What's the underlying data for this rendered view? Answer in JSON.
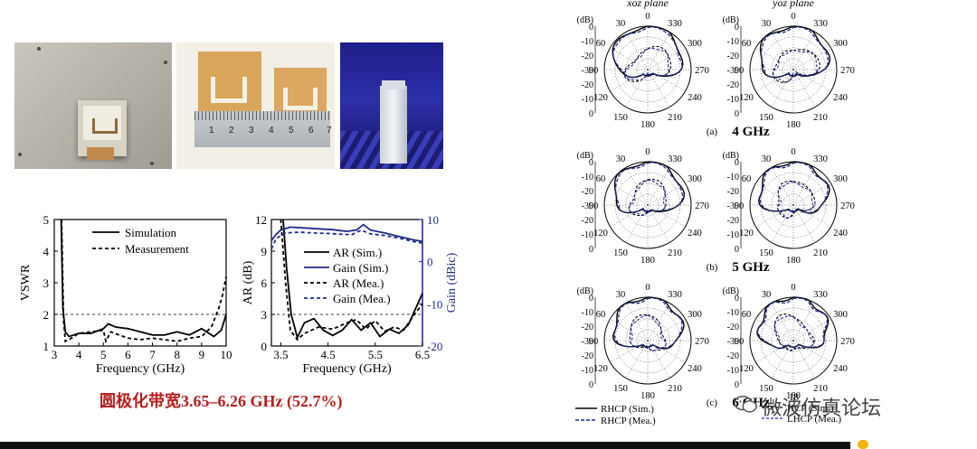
{
  "photos": {
    "ruler_numbers": [
      "1",
      "2",
      "3",
      "4",
      "5",
      "6",
      "7"
    ]
  },
  "chart_data": [
    {
      "type": "line",
      "id": "vswr",
      "xlabel": "Frequency (GHz)",
      "ylabel": "VSWR",
      "xlim": [
        3,
        10
      ],
      "ylim": [
        1,
        5
      ],
      "xticks": [
        "3",
        "4",
        "5",
        "6",
        "7",
        "8",
        "9",
        "10"
      ],
      "yticks": [
        "1",
        "2",
        "3",
        "4",
        "5"
      ],
      "reference_line": 2,
      "series": [
        {
          "name": "Simulation",
          "style": "solid",
          "x": [
            3.28,
            3.35,
            3.45,
            3.6,
            3.8,
            4.0,
            4.5,
            5.0,
            5.2,
            5.5,
            6.0,
            6.5,
            7.0,
            7.5,
            8.0,
            8.5,
            9.0,
            9.5,
            9.8,
            10.0
          ],
          "y": [
            5.0,
            2.2,
            1.45,
            1.3,
            1.35,
            1.4,
            1.4,
            1.55,
            1.7,
            1.6,
            1.55,
            1.45,
            1.35,
            1.35,
            1.45,
            1.35,
            1.55,
            1.3,
            1.5,
            2.0
          ]
        },
        {
          "name": "Measurement",
          "style": "dashed",
          "x": [
            3.3,
            3.38,
            3.45,
            3.6,
            3.8,
            4.0,
            4.5,
            5.0,
            5.1,
            5.3,
            6.0,
            6.5,
            7.0,
            7.5,
            8.0,
            8.5,
            9.0,
            9.4,
            9.7,
            9.85,
            10.0
          ],
          "y": [
            5.0,
            1.8,
            1.15,
            1.2,
            1.3,
            1.4,
            1.45,
            1.5,
            1.15,
            1.45,
            1.25,
            1.2,
            1.25,
            1.2,
            1.15,
            1.25,
            1.3,
            1.6,
            2.2,
            2.6,
            3.2
          ]
        }
      ],
      "legend": [
        "Simulation",
        "Measurement"
      ]
    },
    {
      "type": "line",
      "id": "ar-gain",
      "xlabel": "Frequency (GHz)",
      "ylabel": "AR (dB)",
      "ylabel_right": "Gain (dBic)",
      "xlim": [
        3.3,
        6.5
      ],
      "ylim": [
        0,
        12
      ],
      "ylim_right": [
        -20,
        10
      ],
      "xticks": [
        "3.5",
        "4.5",
        "5.5",
        "6.5"
      ],
      "xtick_values": [
        3.5,
        4.5,
        5.5,
        6.5
      ],
      "yticks": [
        "0",
        "3",
        "6",
        "9",
        "12"
      ],
      "yticks_right": [
        "-20",
        "-10",
        "0",
        "10"
      ],
      "reference_line": 3,
      "series": [
        {
          "name": "AR (Sim.)",
          "style": "solid",
          "color": "#000000",
          "axis": "left",
          "x": [
            3.55,
            3.62,
            3.72,
            3.85,
            4.0,
            4.2,
            4.4,
            4.6,
            4.8,
            5.0,
            5.2,
            5.4,
            5.6,
            5.8,
            6.0,
            6.2,
            6.4,
            6.5
          ],
          "y": [
            12.0,
            7.5,
            3.0,
            0.8,
            2.2,
            2.6,
            1.5,
            1.0,
            1.5,
            2.5,
            1.5,
            2.2,
            0.9,
            1.6,
            1.2,
            2.0,
            4.0,
            5.0
          ]
        },
        {
          "name": "Gain (Sim.)",
          "style": "solid",
          "color": "#1f2a8c",
          "axis": "right",
          "x": [
            3.3,
            3.4,
            3.5,
            3.7,
            4.0,
            4.3,
            4.6,
            4.9,
            5.1,
            5.25,
            5.4,
            5.7,
            6.0,
            6.3,
            6.5
          ],
          "y": [
            5.0,
            6.5,
            7.5,
            8.2,
            8.0,
            7.8,
            7.6,
            7.2,
            7.5,
            8.8,
            7.5,
            6.8,
            6.0,
            5.2,
            4.8
          ]
        },
        {
          "name": "AR (Mea.)",
          "style": "dashed",
          "color": "#000000",
          "axis": "left",
          "x": [
            3.5,
            3.6,
            3.7,
            3.85,
            4.0,
            4.3,
            4.6,
            4.9,
            5.1,
            5.3,
            5.5,
            5.7,
            5.9,
            6.1,
            6.3,
            6.5
          ],
          "y": [
            12.0,
            6.0,
            1.5,
            0.6,
            1.2,
            1.8,
            1.6,
            2.2,
            2.5,
            1.6,
            2.4,
            1.4,
            1.8,
            1.5,
            2.8,
            4.0
          ]
        },
        {
          "name": "Gain (Mea.)",
          "style": "dashed",
          "color": "#1f2a8c",
          "axis": "right",
          "x": [
            3.3,
            3.4,
            3.6,
            3.9,
            4.2,
            4.5,
            4.8,
            5.0,
            5.2,
            5.4,
            5.7,
            6.0,
            6.3,
            6.5
          ],
          "y": [
            3.0,
            5.5,
            6.8,
            7.0,
            6.8,
            6.7,
            6.5,
            6.4,
            7.5,
            6.6,
            6.2,
            5.6,
            4.8,
            4.4
          ]
        }
      ],
      "legend": [
        "AR (Sim.)",
        "Gain (Sim.)",
        "AR (Mea.)",
        "Gain (Mea.)"
      ]
    },
    {
      "type": "polar",
      "id": "radiation-patterns",
      "column_titles": [
        "xoz plane",
        "yoz plane"
      ],
      "unit_label": "(dB)",
      "radial_ticks": [
        "0",
        "-10",
        "-20",
        "-30",
        "-20",
        "-10",
        "0"
      ],
      "angle_labels": {
        "a0": "0",
        "a30": "30",
        "a60": "60",
        "a90": "90",
        "a120": "120",
        "a150": "150",
        "a180": "180",
        "a210": "210",
        "a240": "240",
        "a270": "270",
        "a300": "300",
        "a330": "330"
      },
      "rows": [
        {
          "label": "(a)",
          "freq": "4 GHz"
        },
        {
          "label": "(b)",
          "freq": "5 GHz"
        },
        {
          "label": "(c)",
          "freq": "6 GHz"
        }
      ],
      "legend_left": [
        "RHCP (Sim.)",
        "RHCP (Mea.)"
      ],
      "legend_right": [
        "LHCP (Sim.)",
        "LHCP (Mea.)"
      ],
      "legend_right_visible": [
        "18",
        "HCP (Sim.)",
        "LHCP (Mea.)"
      ]
    }
  ],
  "caption": "圆极化带宽3.65–6.26 GHz (52.7%)",
  "watermark": "微波仿真论坛"
}
